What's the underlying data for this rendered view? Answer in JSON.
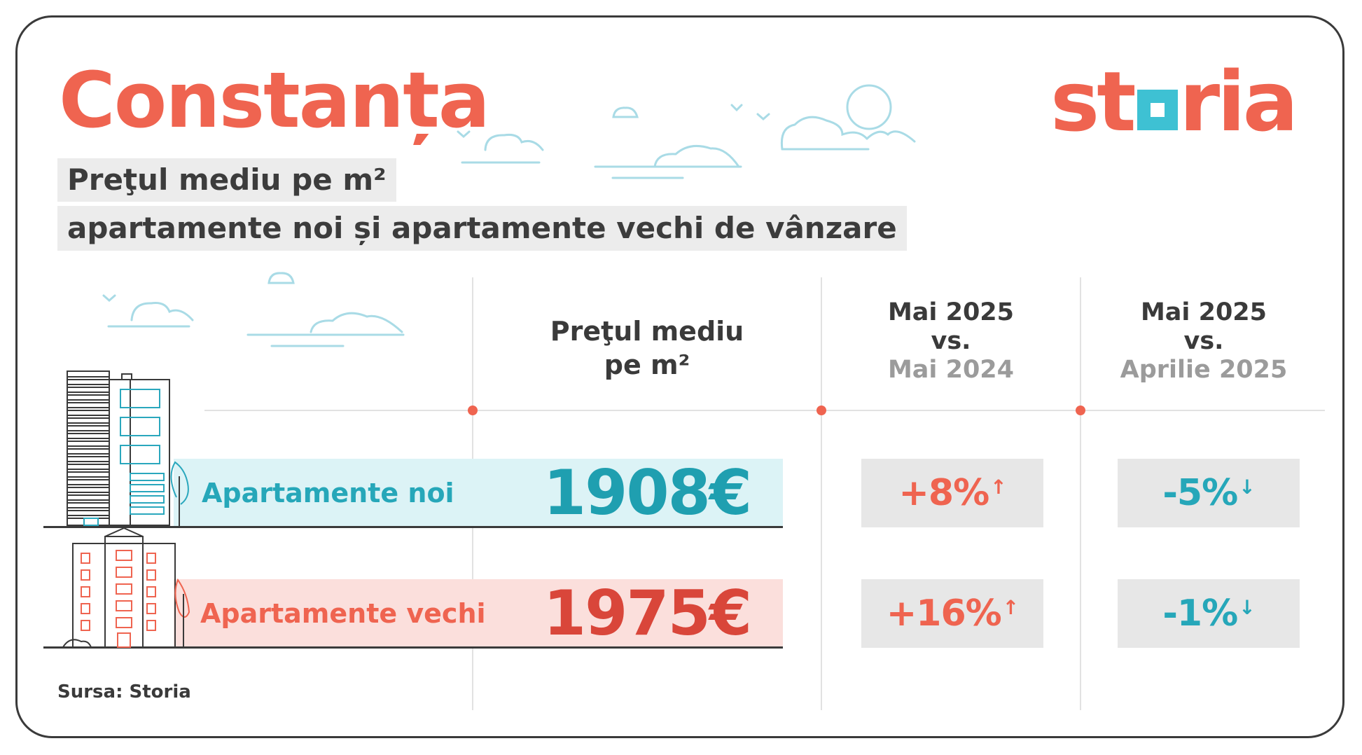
{
  "header": {
    "city": "Constanța",
    "subtitle_line1": "Preţul mediu pe m²",
    "subtitle_line2": "apartamente noi și apartamente vechi de vânzare",
    "logo_text": "storia"
  },
  "columns": {
    "price": {
      "line1": "Preţul mediu",
      "line2": "pe m²"
    },
    "yoy": {
      "line1": "Mai 2025",
      "line2": "vs.",
      "line3": "Mai 2024"
    },
    "mom": {
      "line1": "Mai 2025",
      "line2": "vs.",
      "line3": "Aprilie 2025"
    }
  },
  "rows": [
    {
      "label": "Apartamente noi",
      "price": "1908€",
      "yoy": "+8%",
      "yoy_dir": "up",
      "mom": "-5%",
      "mom_dir": "down"
    },
    {
      "label": "Apartamente vechi",
      "price": "1975€",
      "yoy": "+16%",
      "yoy_dir": "up",
      "mom": "-1%",
      "mom_dir": "down"
    }
  ],
  "source": "Sursa: Storia",
  "colors": {
    "accent_red": "#ef6450",
    "accent_teal": "#26a7b9",
    "band_new": "#dcf3f6",
    "band_old": "#fbdfdc",
    "price_new": "#1f9fb0",
    "price_old": "#d9463a",
    "muted": "#9b9b9b"
  },
  "chart_data": {
    "type": "table",
    "title": "Preţul mediu pe m²",
    "columns": [
      "Preţul mediu pe m²",
      "Mai 2025 vs. Mai 2024",
      "Mai 2025 vs. Aprilie 2025"
    ],
    "rows": [
      {
        "category": "Apartamente noi",
        "price_eur_per_m2": 1908,
        "change_yoy_pct": 8,
        "change_mom_pct": -5
      },
      {
        "category": "Apartamente vechi",
        "price_eur_per_m2": 1975,
        "change_yoy_pct": 16,
        "change_mom_pct": -1
      }
    ],
    "unit": "€/m²"
  }
}
